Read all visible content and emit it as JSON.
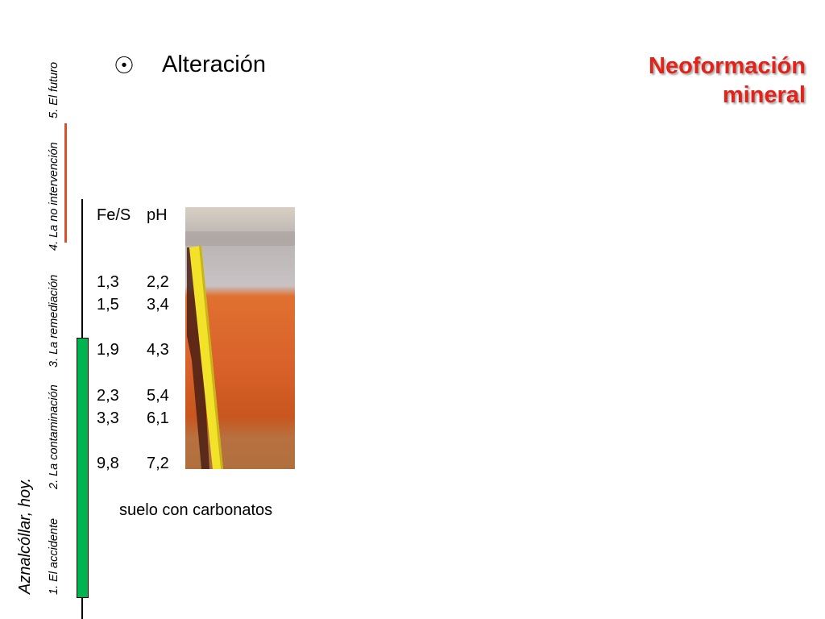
{
  "sidebar": {
    "subtitle": "Aznalcóllar, hoy.",
    "sections": [
      {
        "label": "1. El accidente"
      },
      {
        "label": "2. La contaminación"
      },
      {
        "label": "3. La remediación"
      },
      {
        "label": "4. La no intervención"
      },
      {
        "label": "5. El futuro"
      }
    ],
    "active_color": "#d9502a",
    "progress_color": "#00b44f"
  },
  "header": {
    "bullet_icon": "circled-dot-icon",
    "title": "Alteración",
    "highlight": "Neoformación mineral",
    "highlight_color": "#e2231a"
  },
  "table": {
    "headers": [
      "Fe/S",
      "pH"
    ],
    "rows": [
      [
        "1,3",
        "2,2"
      ],
      [
        "1,5",
        "3,4"
      ],
      [
        "1,9",
        "4,3"
      ],
      [
        "2,3",
        "5,4"
      ],
      [
        "3,3",
        "6,1"
      ],
      [
        "9,8",
        "7,2"
      ]
    ],
    "caption": "suelo con carbonatos"
  }
}
